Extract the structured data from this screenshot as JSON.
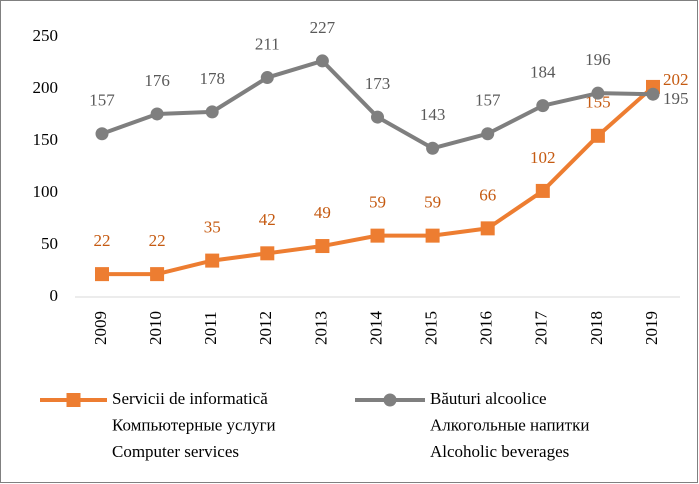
{
  "chart_data": {
    "type": "line",
    "categories": [
      "2009",
      "2010",
      "2011",
      "2012",
      "2013",
      "2014",
      "2015",
      "2016",
      "2017",
      "2018",
      "2019"
    ],
    "series": [
      {
        "name": [
          "Servicii de informatică",
          "Компьютерные услуги",
          "Computer services"
        ],
        "color": "#ed7d31",
        "marker": "square",
        "values": [
          22,
          22,
          35,
          42,
          49,
          59,
          59,
          66,
          102,
          155,
          202
        ]
      },
      {
        "name": [
          "Băuturi alcoolice",
          "Алкогольные напитки",
          "Alcoholic beverages"
        ],
        "color": "#7f7f7f",
        "marker": "circle",
        "values": [
          157,
          176,
          178,
          211,
          227,
          173,
          143,
          157,
          184,
          196,
          195
        ]
      }
    ],
    "ylim": [
      0,
      250
    ],
    "yticks": [
      0,
      50,
      100,
      150,
      200,
      250
    ],
    "grid": false,
    "legend": "bottom"
  }
}
